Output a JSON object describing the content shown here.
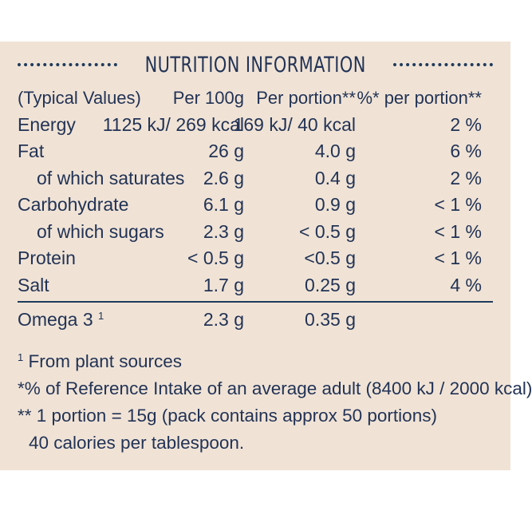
{
  "title": "NUTRITION INFORMATION",
  "header": {
    "col0": "(Typical Values)",
    "col1": "Per 100g",
    "col2": "Per portion**",
    "col3": "%* per portion**"
  },
  "rows": [
    {
      "name": "Energy",
      "per100": "1125 kJ/ 269 kcal",
      "perPortion": "169 kJ/ 40 kcal",
      "ri": "2 %"
    },
    {
      "name": "Fat",
      "per100": "26 g",
      "perPortion": "4.0 g",
      "ri": "6 %"
    },
    {
      "name": "of which saturates",
      "per100": "2.6 g",
      "perPortion": "0.4 g",
      "ri": "2 %"
    },
    {
      "name": "Carbohydrate",
      "per100": "6.1 g",
      "perPortion": "0.9 g",
      "ri": "< 1 %"
    },
    {
      "name": "of which sugars",
      "per100": "2.3 g",
      "perPortion": "< 0.5 g",
      "ri": "< 1 %"
    },
    {
      "name": "Protein",
      "per100": "< 0.5 g",
      "perPortion": "<0.5 g",
      "ri": "< 1 %"
    },
    {
      "name": "Salt",
      "per100": "1.7 g",
      "perPortion": "0.25 g",
      "ri": "4 %"
    }
  ],
  "omega": {
    "name": "Omega 3",
    "sup": "1",
    "per100": "2.3 g",
    "perPortion": "0.35 g"
  },
  "notes": {
    "n1_sup": "1",
    "n1": " From plant sources",
    "n2": "*% of Reference Intake of an average adult (8400 kJ / 2000 kcal)",
    "n3": "** 1 portion = 15g (pack contains approx 50 portions)",
    "n4": "40 calories per tablespoon."
  },
  "colors": {
    "background": "#f0e3d6",
    "text": "#223355"
  }
}
